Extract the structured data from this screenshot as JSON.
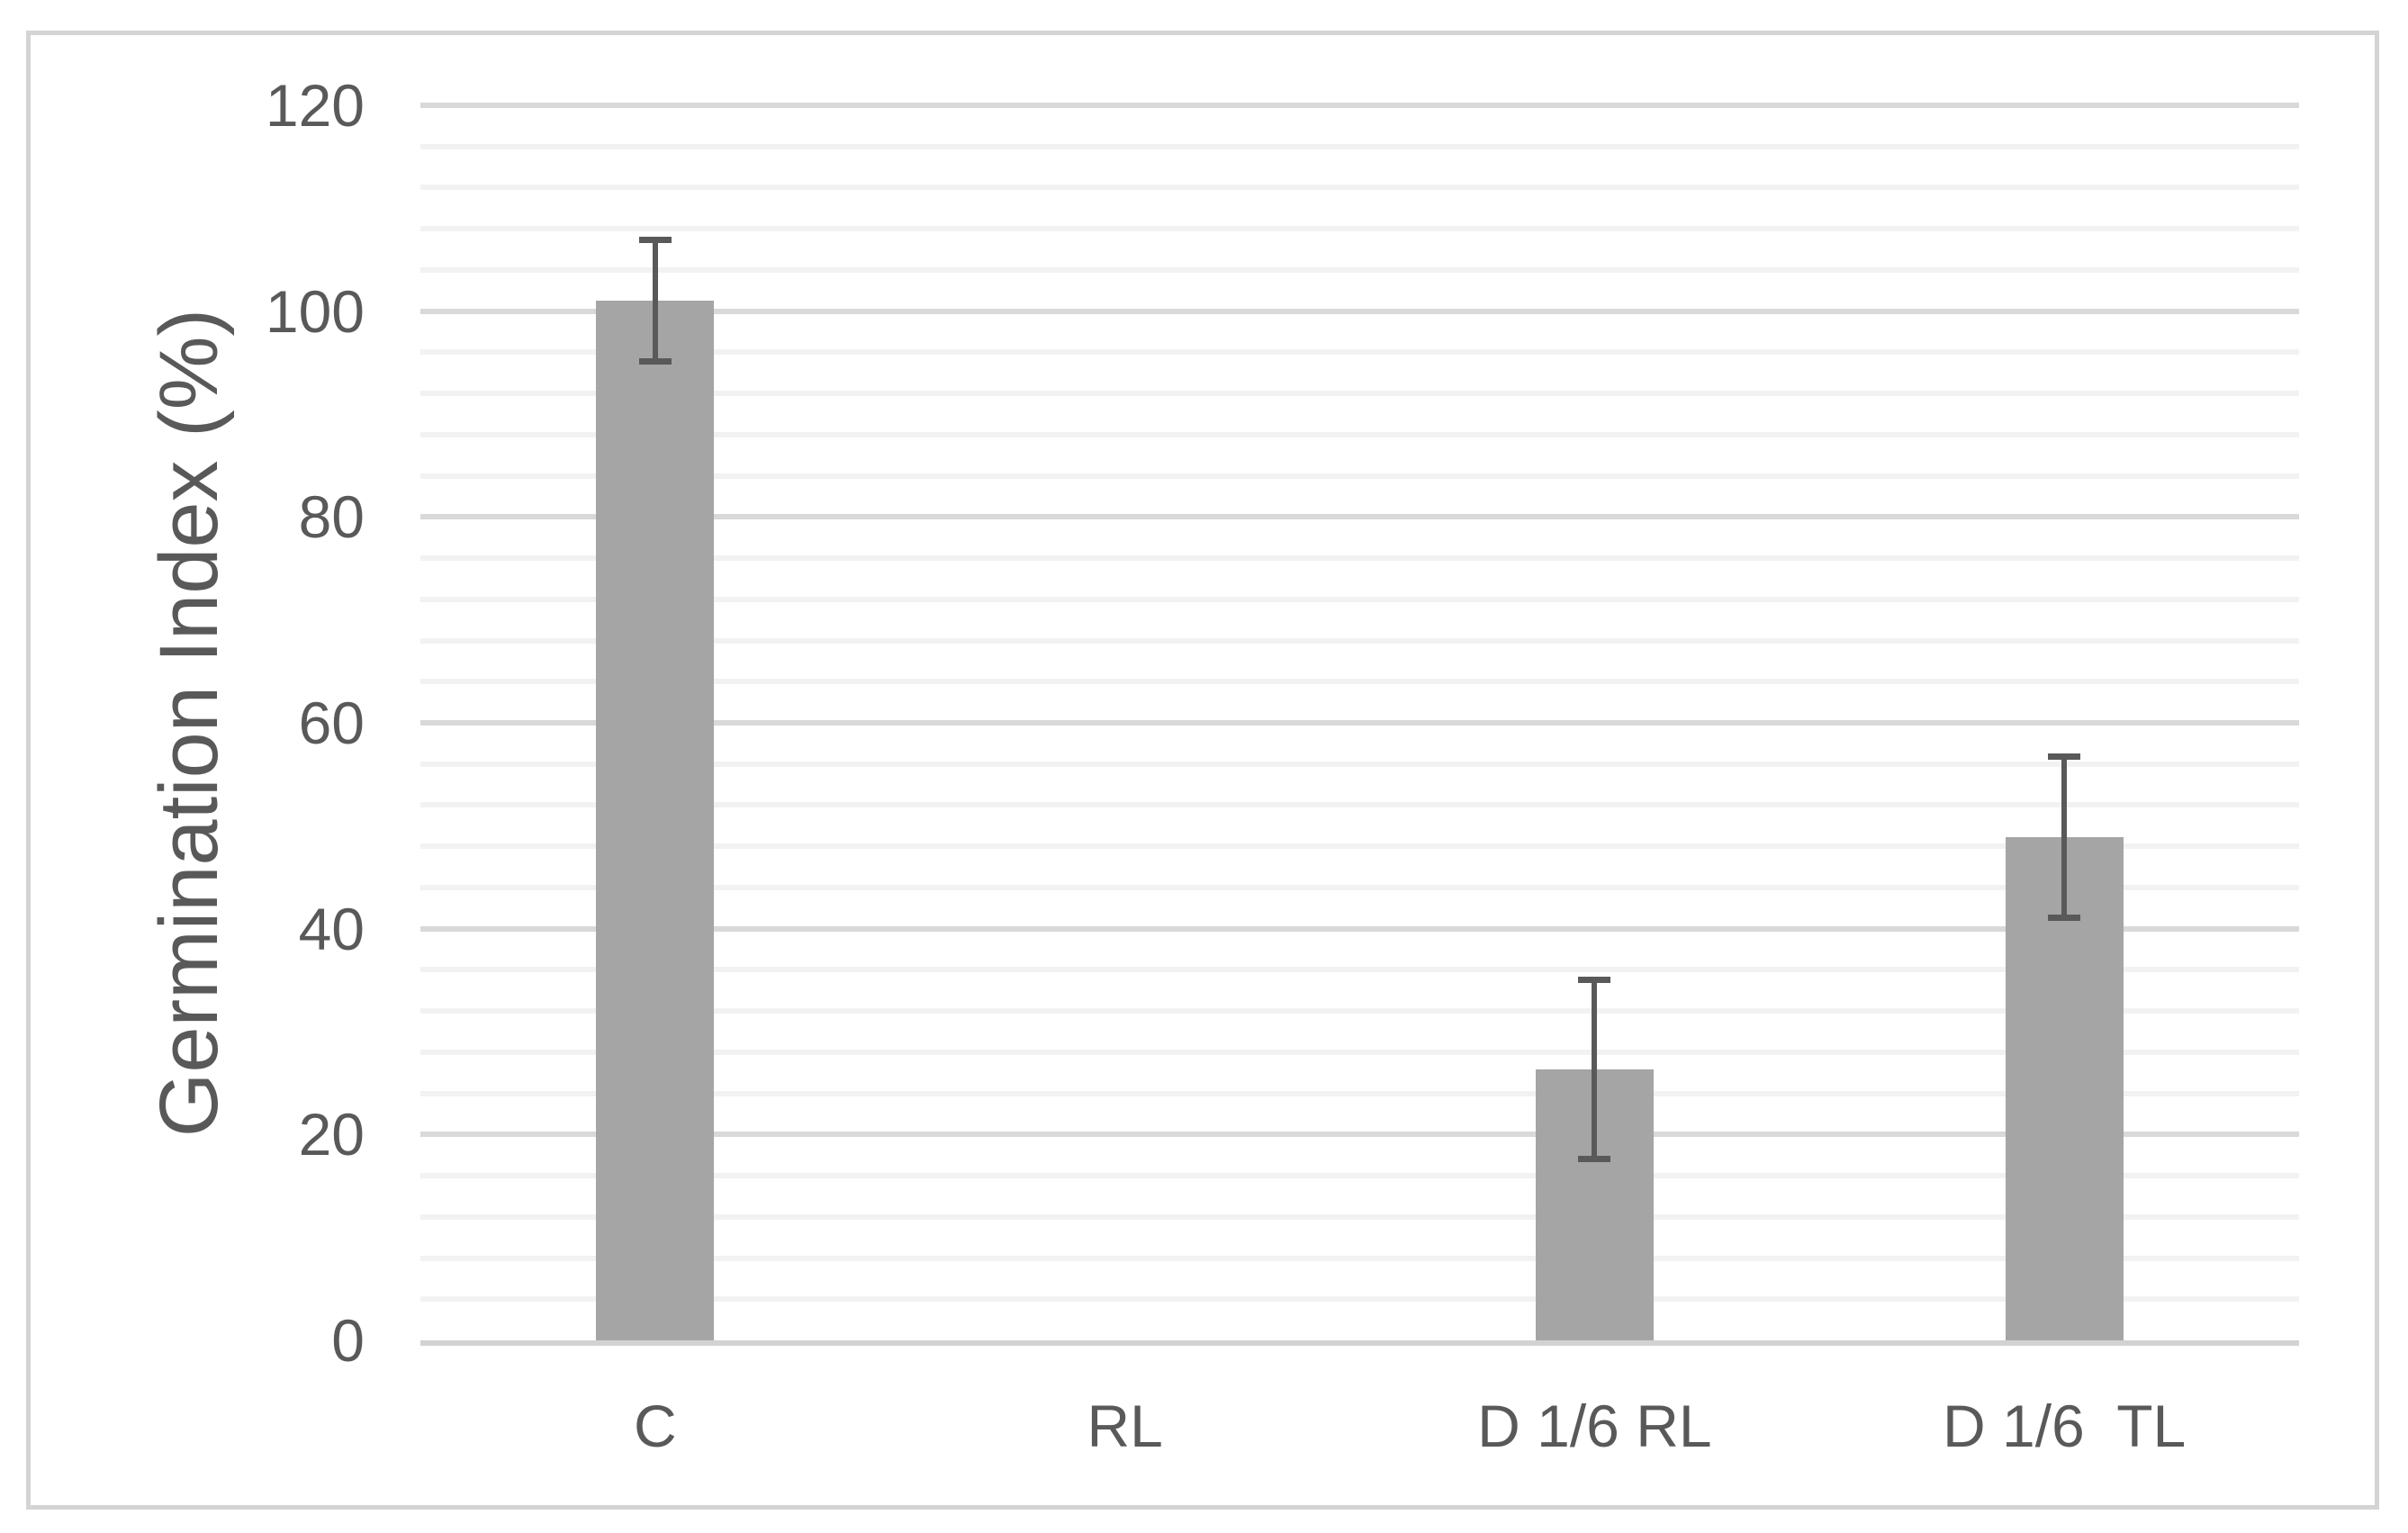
{
  "chart_data": {
    "type": "bar",
    "title": "",
    "xlabel": "",
    "ylabel": "Germination Index (%)",
    "categories": [
      "C",
      "RL",
      "D 1/6 RL",
      "D 1/6  TL"
    ],
    "values": [
      101,
      0,
      26.3,
      48.9
    ],
    "errors": [
      5.9,
      null,
      8.7,
      7.8
    ],
    "ylim": [
      0,
      120
    ],
    "y_major_unit": 20,
    "y_minor_unit": 4,
    "y_tick_labels": [
      "0",
      "20",
      "40",
      "60",
      "80",
      "100",
      "120"
    ],
    "grid": "horizontal major and minor gridlines, on",
    "legend_position": "none",
    "colors": {
      "bar_fill": "#a5a5a5",
      "error_bar": "#595959",
      "major_gridline": "#d9d9d9",
      "minor_gridline": "#f2f2f2",
      "axis_line": "#d2d2d2",
      "text": "#595959",
      "frame_border": "#d4d4d4",
      "background": "#ffffff"
    }
  }
}
